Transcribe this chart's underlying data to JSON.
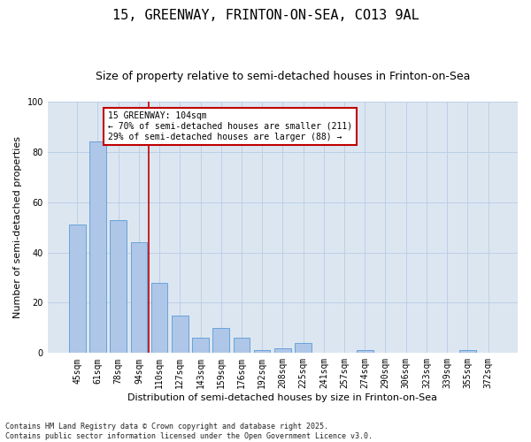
{
  "title": "15, GREENWAY, FRINTON-ON-SEA, CO13 9AL",
  "subtitle": "Size of property relative to semi-detached houses in Frinton-on-Sea",
  "xlabel": "Distribution of semi-detached houses by size in Frinton-on-Sea",
  "ylabel": "Number of semi-detached properties",
  "categories": [
    "45sqm",
    "61sqm",
    "78sqm",
    "94sqm",
    "110sqm",
    "127sqm",
    "143sqm",
    "159sqm",
    "176sqm",
    "192sqm",
    "208sqm",
    "225sqm",
    "241sqm",
    "257sqm",
    "274sqm",
    "290sqm",
    "306sqm",
    "323sqm",
    "339sqm",
    "355sqm",
    "372sqm"
  ],
  "values": [
    51,
    84,
    53,
    44,
    28,
    15,
    6,
    10,
    6,
    1,
    2,
    4,
    0,
    0,
    1,
    0,
    0,
    0,
    0,
    1,
    0
  ],
  "bar_color": "#aec6e8",
  "bar_edge_color": "#5b9bd5",
  "property_line_color": "#c00000",
  "property_line_index": 3.5,
  "annotation_text": "15 GREENWAY: 104sqm\n← 70% of semi-detached houses are smaller (211)\n29% of semi-detached houses are larger (88) →",
  "annotation_box_color": "#c00000",
  "ylim": [
    0,
    100
  ],
  "yticks": [
    0,
    20,
    40,
    60,
    80,
    100
  ],
  "grid_color": "#b8cce4",
  "background_color": "#dce6f1",
  "footer": "Contains HM Land Registry data © Crown copyright and database right 2025.\nContains public sector information licensed under the Open Government Licence v3.0.",
  "title_fontsize": 11,
  "subtitle_fontsize": 9,
  "xlabel_fontsize": 8,
  "ylabel_fontsize": 8,
  "tick_fontsize": 7,
  "annotation_fontsize": 7,
  "footer_fontsize": 6
}
